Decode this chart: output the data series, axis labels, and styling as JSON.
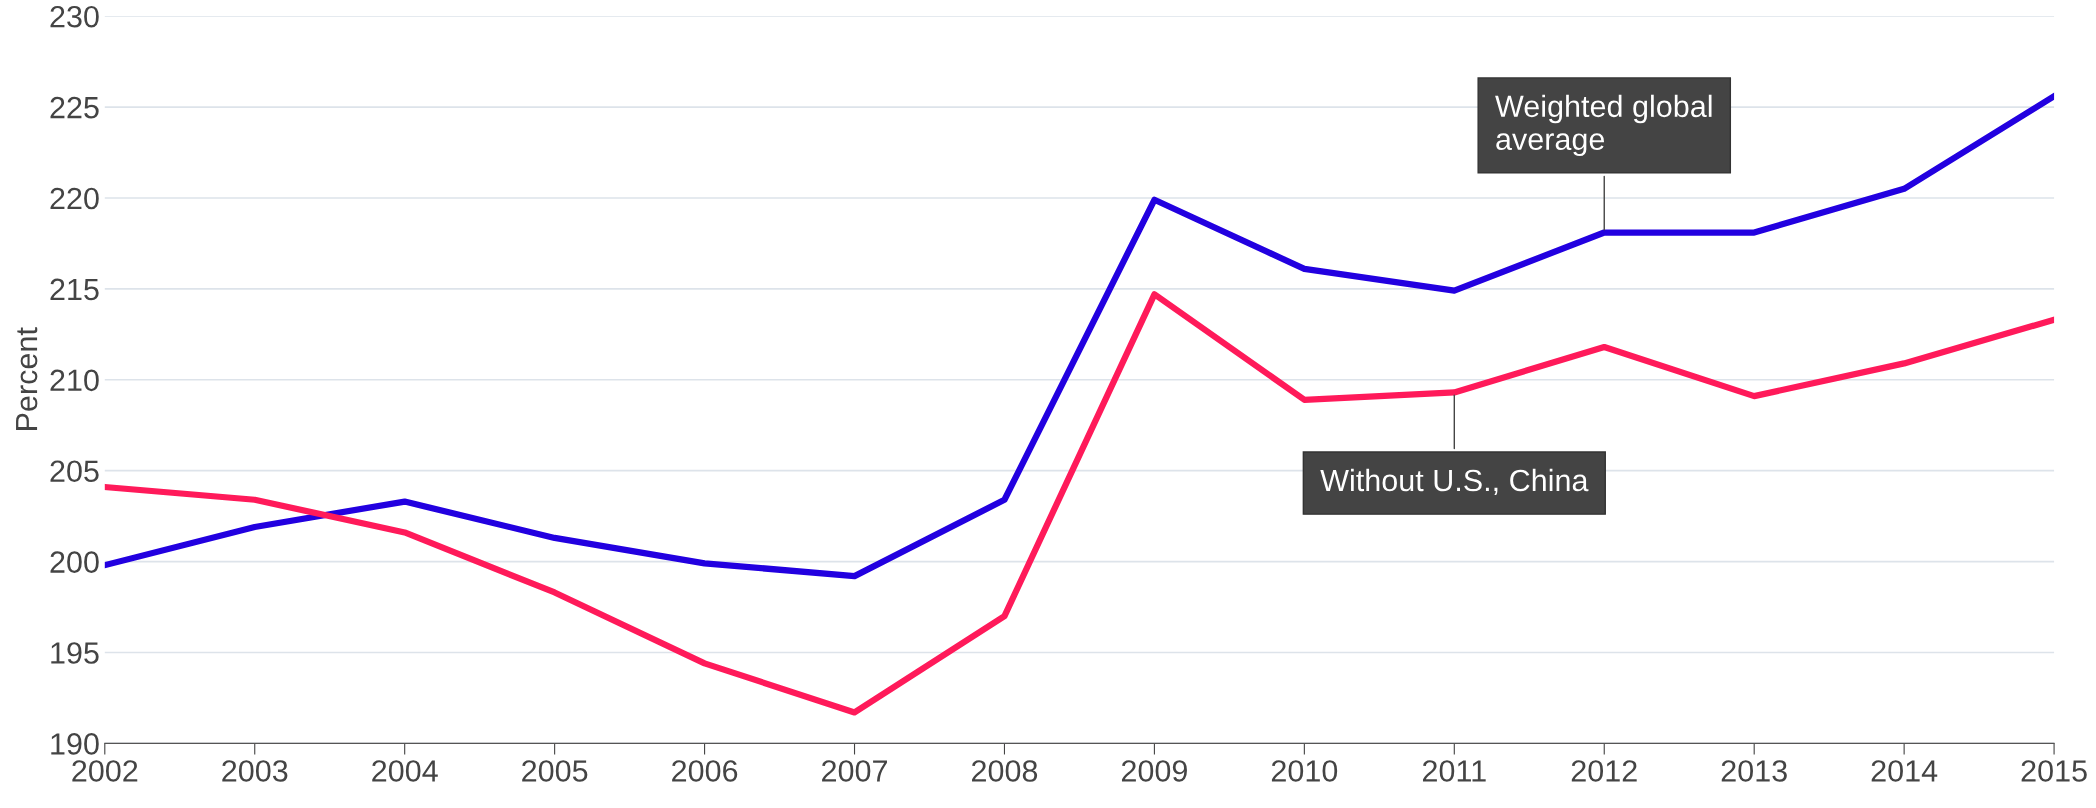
{
  "chart_data": {
    "type": "line",
    "ylabel": "Percent",
    "x": [
      2002,
      2003,
      2004,
      2005,
      2006,
      2007,
      2008,
      2009,
      2010,
      2011,
      2012,
      2013,
      2014,
      2015
    ],
    "series": [
      {
        "color": "#2200e0",
        "values": [
          199.8,
          201.9,
          203.3,
          201.3,
          199.9,
          199.2,
          203.4,
          219.9,
          216.1,
          214.9,
          218.1,
          218.1,
          220.5,
          225.6
        ]
      },
      {
        "color": "#ff1a5a",
        "values": [
          204.1,
          203.4,
          201.6,
          198.3,
          194.4,
          191.7,
          197.0,
          214.7,
          208.9,
          209.3,
          211.8,
          209.1,
          210.9,
          213.3
        ]
      }
    ],
    "annotations": [
      {
        "text": "Weighted global\naverage",
        "x": 2012,
        "y": 218.1
      },
      {
        "text": "Without U.S., China",
        "x": 2011,
        "y": 209.3
      }
    ],
    "xlim": [
      2002,
      2015
    ],
    "xticks": [
      2002,
      2003,
      2004,
      2005,
      2006,
      2007,
      2008,
      2009,
      2010,
      2011,
      2012,
      2013,
      2014,
      2015
    ],
    "ylim": [
      190,
      230
    ],
    "yticks": [
      190,
      195,
      200,
      205,
      210,
      215,
      220,
      225,
      230
    ],
    "grid": "y",
    "marker": "none",
    "line_style": "solid"
  }
}
